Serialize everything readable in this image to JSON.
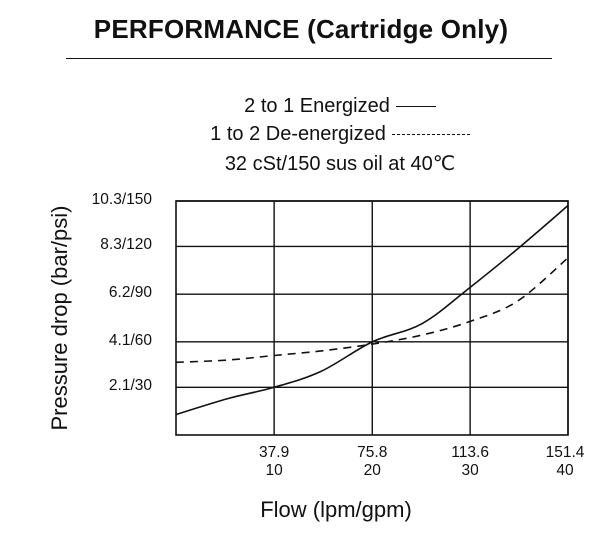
{
  "header": {
    "title": "PERFORMANCE (Cartridge Only)"
  },
  "legend": {
    "line1": "2 to 1 Energized",
    "line2": "1 to 2 De-energized",
    "line3": "32 cSt/150 sus oil at 40℃"
  },
  "chart_data": {
    "type": "line",
    "xlabel": "Flow  (lpm/gpm)",
    "ylabel": "Pressure drop (bar/psi)",
    "xlim": [
      0,
      151.4
    ],
    "ylim": [
      0,
      10.3
    ],
    "x_tick_values": [
      37.9,
      75.8,
      113.6,
      151.4
    ],
    "x_ticks_lpm": [
      "37.9",
      "75.8",
      "113.6",
      "151.4"
    ],
    "x_ticks_gpm": [
      "10",
      "20",
      "30",
      "40"
    ],
    "y_tick_values": [
      2.1,
      4.1,
      6.2,
      8.3,
      10.3
    ],
    "y_ticks": [
      "2.1/30",
      "4.1/60",
      "6.2/90",
      "8.3/120",
      "10.3/150"
    ],
    "grid": true,
    "legend_position": "top",
    "series": [
      {
        "name": "2 to 1 Energized",
        "style": "solid",
        "x": [
          0,
          20,
          37.9,
          56,
          75.8,
          95,
          113.6,
          132,
          151.4
        ],
        "y": [
          0.9,
          1.6,
          2.1,
          2.8,
          4.1,
          4.9,
          6.5,
          8.2,
          10.1
        ]
      },
      {
        "name": "1 to 2 De-energized",
        "style": "dashed",
        "x": [
          0,
          20,
          37.9,
          56,
          75.8,
          95,
          113.6,
          132,
          151.4
        ],
        "y": [
          3.2,
          3.3,
          3.5,
          3.7,
          4.0,
          4.4,
          5.0,
          5.9,
          7.8
        ]
      }
    ]
  }
}
